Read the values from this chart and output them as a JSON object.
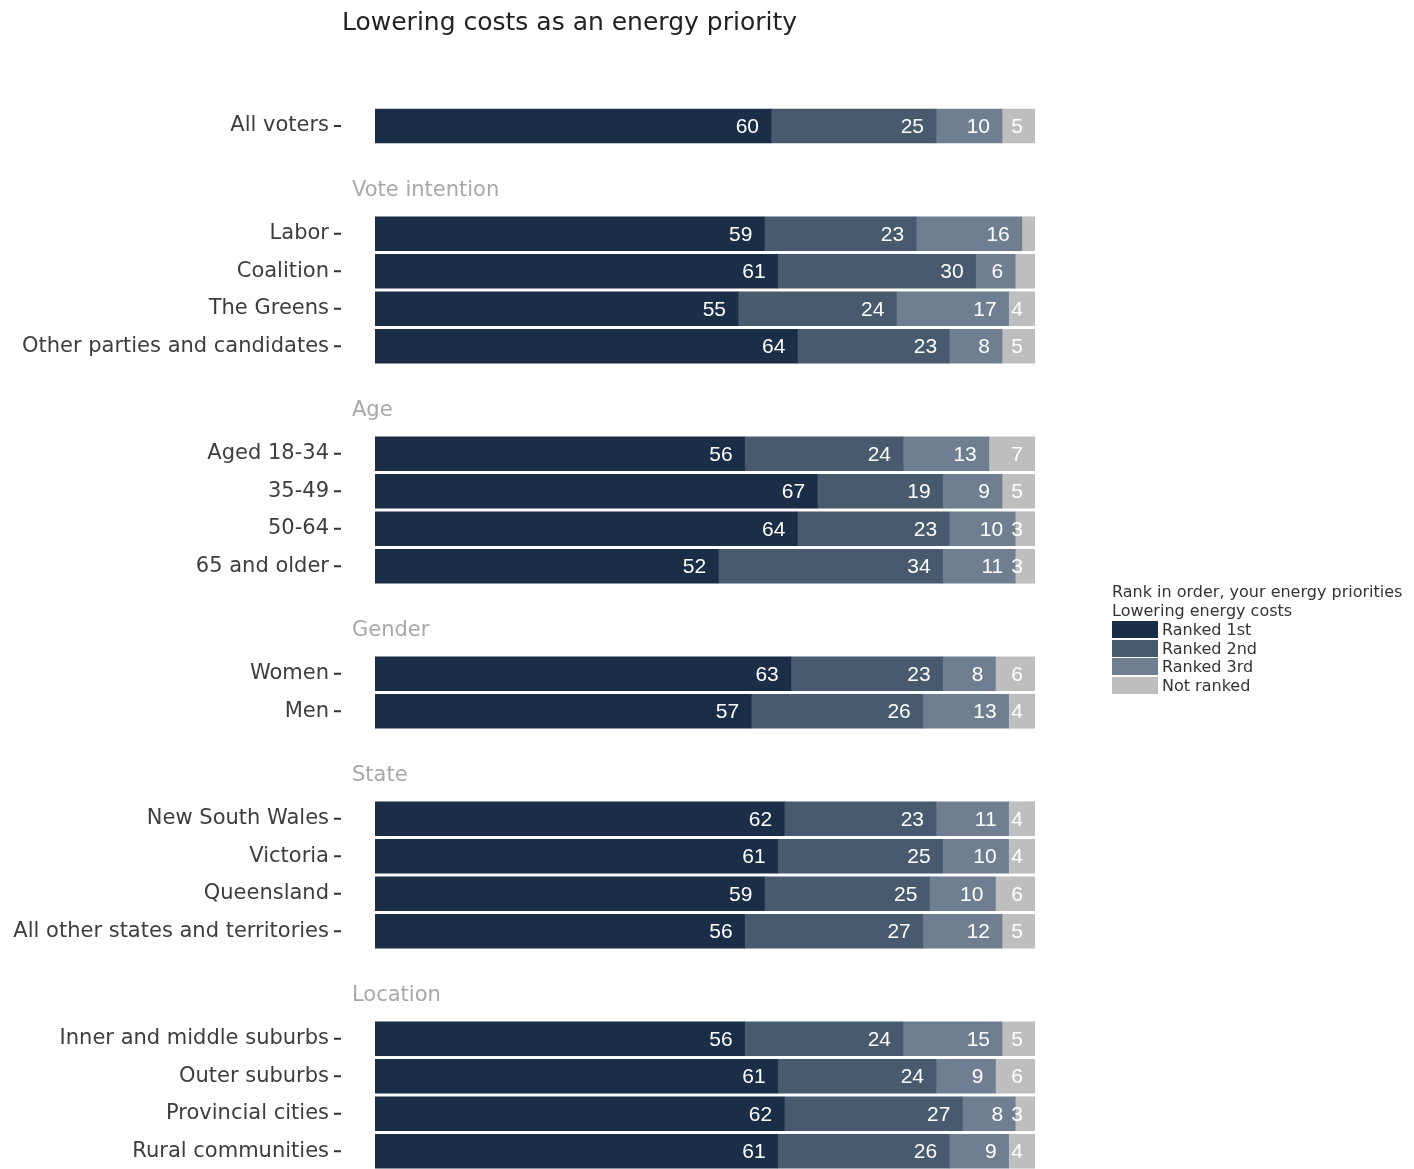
{
  "chart_data": [
    {
      "type": "bar",
      "title": "Lowering costs as an energy priority",
      "orientation": "horizontal",
      "stacked": true,
      "tick_labels": "y",
      "data_labels": true,
      "legend": "right",
      "legend_title": "Rank in order, your energy priorities\nLowering energy costs",
      "categories": [
        "All voters"
      ],
      "series": [
        {
          "name": "Ranked 1st",
          "color": "#1b2e48",
          "values": [
            60
          ]
        },
        {
          "name": "Ranked 2nd",
          "color": "#475a6e",
          "values": [
            25
          ]
        },
        {
          "name": "Ranked 3rd",
          "color": "#6f7f91",
          "values": [
            10
          ]
        },
        {
          "name": "Not ranked",
          "color": "#bebebe",
          "values": [
            5
          ]
        }
      ]
    },
    {
      "type": "bar",
      "title": "Vote intention",
      "orientation": "horizontal",
      "stacked": true,
      "tick_labels": "y",
      "categories": [
        "Labor",
        "Coalition",
        "The Greens",
        "Other parties and candidates"
      ],
      "series": [
        {
          "color": "#1b2e48",
          "values": [
            59,
            61,
            55,
            64
          ],
          "value_labels": [
            "59",
            "61",
            "55",
            "64"
          ]
        },
        {
          "color": "#475a6e",
          "values": [
            23,
            30,
            24,
            23
          ],
          "value_labels": [
            "23",
            "30",
            "24",
            "23"
          ]
        },
        {
          "color": "#6f7f91",
          "values": [
            16,
            6,
            17,
            8
          ],
          "value_labels": [
            "16",
            "6",
            "17",
            "8"
          ]
        },
        {
          "color": "#bebebe",
          "values": [
            2,
            3,
            4,
            5
          ],
          "value_labels": [
            null,
            null,
            "4",
            "5"
          ]
        }
      ]
    },
    {
      "type": "bar",
      "title": "Age",
      "orientation": "horizontal",
      "stacked": true,
      "tick_labels": "y",
      "data_labels": true,
      "categories": [
        "Aged 18-34",
        "35-49",
        "50-64",
        "65 and older"
      ],
      "series": [
        {
          "color": "#1b2e48",
          "values": [
            56,
            67,
            64,
            52
          ]
        },
        {
          "color": "#475a6e",
          "values": [
            24,
            19,
            23,
            34
          ]
        },
        {
          "color": "#6f7f91",
          "values": [
            13,
            9,
            10,
            11
          ]
        },
        {
          "color": "#bebebe",
          "values": [
            7,
            5,
            3,
            3
          ]
        }
      ]
    },
    {
      "type": "bar",
      "title": "Gender",
      "orientation": "horizontal",
      "stacked": true,
      "tick_labels": "y",
      "data_labels": true,
      "categories": [
        "Women",
        "Men"
      ],
      "series": [
        {
          "color": "#1b2e48",
          "values": [
            63,
            57
          ]
        },
        {
          "color": "#475a6e",
          "values": [
            23,
            26
          ]
        },
        {
          "color": "#6f7f91",
          "values": [
            8,
            13
          ]
        },
        {
          "color": "#bebebe",
          "values": [
            6,
            4
          ]
        }
      ]
    },
    {
      "type": "bar",
      "title": "State",
      "orientation": "horizontal",
      "stacked": true,
      "tick_labels": "y",
      "data_labels": true,
      "categories": [
        "New South Wales",
        "Victoria",
        "Queensland",
        "All other states and territories"
      ],
      "series": [
        {
          "color": "#1b2e48",
          "values": [
            62,
            61,
            59,
            56
          ]
        },
        {
          "color": "#475a6e",
          "values": [
            23,
            25,
            25,
            27
          ]
        },
        {
          "color": "#6f7f91",
          "values": [
            11,
            10,
            10,
            12
          ]
        },
        {
          "color": "#bebebe",
          "values": [
            4,
            4,
            6,
            5
          ]
        }
      ]
    },
    {
      "type": "bar",
      "title": "Location",
      "orientation": "horizontal",
      "stacked": true,
      "tick_labels": "y",
      "data_labels": true,
      "categories": [
        "Inner and middle suburbs",
        "Outer suburbs",
        "Provincial cities",
        "Rural communities"
      ],
      "series": [
        {
          "color": "#1b2e48",
          "values": [
            56,
            61,
            62,
            61
          ]
        },
        {
          "color": "#475a6e",
          "values": [
            24,
            24,
            27,
            26
          ]
        },
        {
          "color": "#6f7f91",
          "values": [
            15,
            9,
            8,
            9
          ]
        },
        {
          "color": "#bebebe",
          "values": [
            5,
            6,
            3,
            4
          ]
        }
      ]
    }
  ]
}
